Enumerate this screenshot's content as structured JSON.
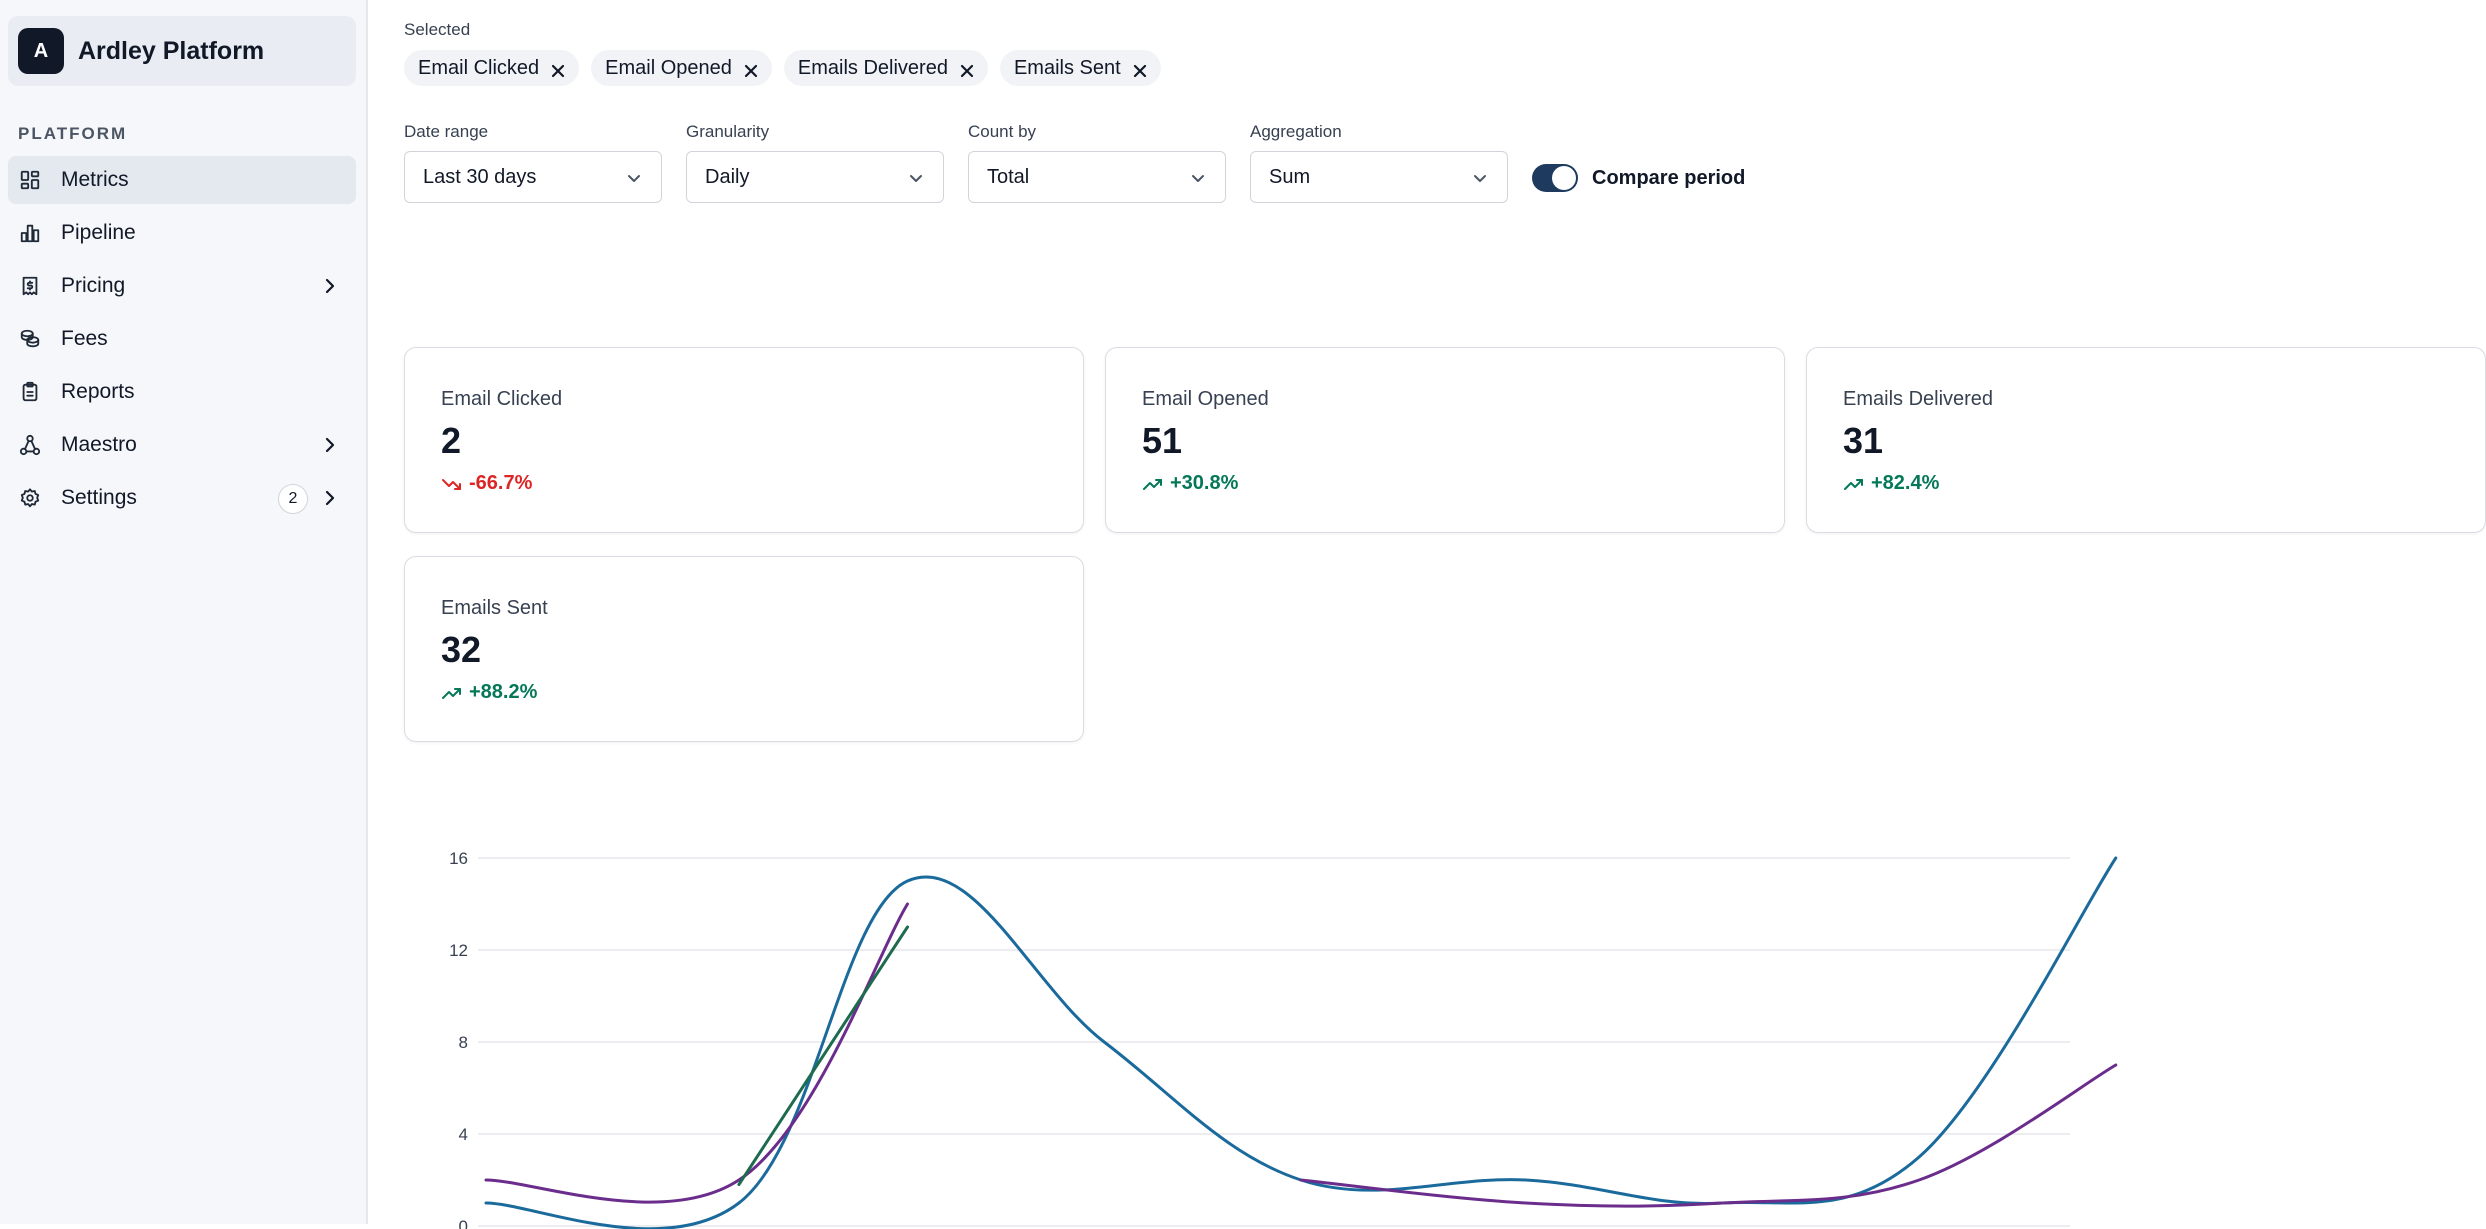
{
  "sidebar": {
    "brand": {
      "initial": "A",
      "name": "Ardley Platform"
    },
    "section_label": "PLATFORM",
    "items": [
      {
        "label": "Metrics",
        "icon": "dashboard-grid-icon",
        "active": true
      },
      {
        "label": "Pipeline",
        "icon": "bar-chart-icon"
      },
      {
        "label": "Pricing",
        "icon": "receipt-icon",
        "has_submenu": true
      },
      {
        "label": "Fees",
        "icon": "coins-icon"
      },
      {
        "label": "Reports",
        "icon": "clipboard-icon"
      },
      {
        "label": "Maestro",
        "icon": "workflow-icon",
        "has_submenu": true
      },
      {
        "label": "Settings",
        "icon": "gear-icon",
        "badge": "2",
        "has_submenu": true
      }
    ]
  },
  "selected": {
    "label": "Selected",
    "chips": [
      "Email Clicked",
      "Email Opened",
      "Emails Delivered",
      "Emails Sent"
    ]
  },
  "controls": {
    "date_range": {
      "label": "Date range",
      "value": "Last 30 days"
    },
    "granularity": {
      "label": "Granularity",
      "value": "Daily"
    },
    "count_by": {
      "label": "Count by",
      "value": "Total"
    },
    "aggregation": {
      "label": "Aggregation",
      "value": "Sum"
    },
    "compare": {
      "label": "Compare period",
      "enabled": true
    }
  },
  "metrics": [
    {
      "title": "Email Clicked",
      "value": "2",
      "delta": "-66.7%",
      "trend": "down"
    },
    {
      "title": "Email Opened",
      "value": "51",
      "delta": "+30.8%",
      "trend": "up"
    },
    {
      "title": "Emails Delivered",
      "value": "31",
      "delta": "+82.4%",
      "trend": "up"
    },
    {
      "title": "Emails Sent",
      "value": "32",
      "delta": "+88.2%",
      "trend": "up"
    }
  ],
  "colors": {
    "series_blue": "#1b6a9c",
    "series_purple": "#6b2d8c",
    "series_green": "#1f6b4f",
    "up": "#047857",
    "down": "#dc2626"
  },
  "chart_data": {
    "type": "line",
    "y_ticks": [
      "16",
      "12",
      "8",
      "4",
      "0"
    ],
    "ylim": [
      0,
      16
    ],
    "series": [
      {
        "color": "#1b6a9c",
        "points": [
          [
            0,
            1
          ],
          [
            9,
            1
          ],
          [
            15,
            15
          ],
          [
            22,
            8
          ],
          [
            29,
            2
          ],
          [
            37,
            2
          ],
          [
            44,
            1
          ],
          [
            51,
            3
          ],
          [
            58,
            16
          ]
        ]
      },
      {
        "color": "#6b2d8c",
        "points": [
          [
            0,
            2
          ],
          [
            9,
            2
          ],
          [
            15,
            14
          ]
        ]
      },
      {
        "color": "#6b2d8c",
        "points": [
          [
            29,
            2
          ],
          [
            37,
            1
          ],
          [
            44,
            1
          ],
          [
            51,
            2
          ],
          [
            58,
            7
          ]
        ]
      },
      {
        "color": "#1f6b4f",
        "points": [
          [
            9,
            1.8
          ],
          [
            15,
            13
          ]
        ]
      }
    ]
  }
}
